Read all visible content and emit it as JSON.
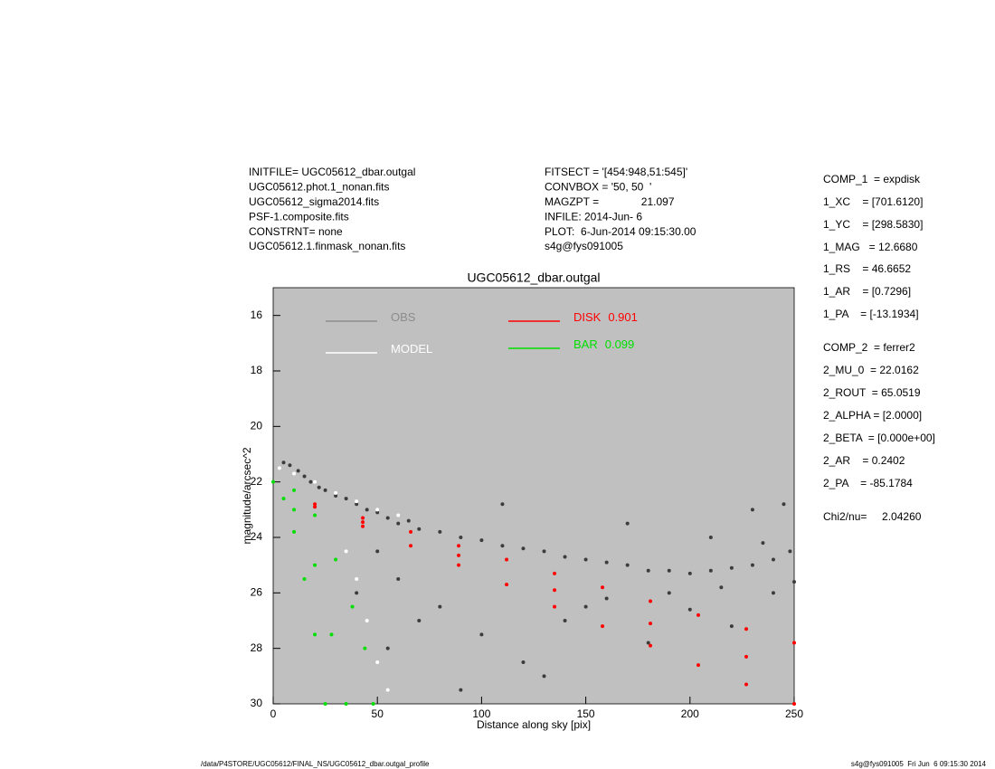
{
  "header": {
    "left": [
      "INITFILE= UGC05612_dbar.outgal",
      "UGC05612.phot.1_nonan.fits",
      "UGC05612_sigma2014.fits",
      "PSF-1.composite.fits",
      "CONSTRNT= none",
      "UGC05612.1.finmask_nonan.fits"
    ],
    "middle": [
      "FITSECT = '[454:948,51:545]'",
      "CONVBOX = '50, 50  '",
      "MAGZPT =              21.097",
      "INFILE: 2014-Jun- 6",
      "PLOT:  6-Jun-2014 09:15:30.00",
      "s4g@fys091005"
    ],
    "right": [
      "COMP_1  = expdisk",
      "1_XC    = [701.6120]",
      "1_YC    = [298.5830]",
      "1_MAG   = 12.6680",
      "1_RS    = 46.6652",
      "1_AR    = [0.7296]",
      "1_PA    = [-13.1934]",
      "COMP_2  = ferrer2",
      "2_MU_0  = 22.0162",
      "2_ROUT  = 65.0519",
      "2_ALPHA = [2.0000]",
      "2_BETA  = [0.000e+00]",
      "2_AR    = 0.2402",
      "2_PA    = -85.1784",
      "Chi2/nu=     2.04260"
    ]
  },
  "chart_data": {
    "type": "scatter",
    "title": "UGC05612_dbar.outgal",
    "x_label": "Distance along sky [pix]",
    "y_label": "magnitude/arcsec^2",
    "xlim": [
      0,
      250
    ],
    "ylim": [
      30,
      15
    ],
    "xticks": [
      0,
      50,
      100,
      150,
      200,
      250
    ],
    "yticks": [
      16,
      18,
      20,
      22,
      24,
      26,
      28,
      30
    ],
    "background": "#c0c0c0",
    "series": [
      {
        "name": "OBS",
        "color": "#3c3c3c",
        "legend_color": "#8c8c8c",
        "x": [
          5,
          8,
          12,
          15,
          18,
          22,
          25,
          30,
          35,
          40,
          45,
          50,
          55,
          60,
          65,
          70,
          80,
          90,
          100,
          110,
          120,
          130,
          140,
          150,
          160,
          170,
          180,
          190,
          200,
          210,
          220,
          230,
          240,
          248,
          60,
          80,
          100,
          120,
          140,
          160,
          180,
          200,
          220,
          240,
          90,
          130,
          70,
          110,
          170,
          230,
          245,
          210,
          190,
          150,
          50,
          40,
          55,
          250,
          235,
          215
        ],
        "values": [
          21.3,
          21.4,
          21.6,
          21.8,
          22.0,
          22.2,
          22.3,
          22.5,
          22.6,
          22.8,
          23.0,
          23.1,
          23.3,
          23.5,
          23.4,
          23.7,
          23.8,
          24.0,
          24.1,
          24.3,
          24.4,
          24.5,
          24.7,
          24.8,
          24.9,
          25.0,
          25.2,
          25.2,
          25.3,
          25.2,
          25.1,
          25.0,
          24.8,
          24.5,
          25.5,
          26.5,
          27.5,
          28.5,
          27.0,
          26.2,
          27.8,
          26.6,
          27.2,
          26.0,
          29.5,
          29.0,
          27.0,
          22.8,
          23.5,
          23.0,
          22.8,
          24.0,
          26.0,
          26.5,
          24.5,
          26.0,
          28.0,
          25.6,
          24.2,
          25.8
        ]
      },
      {
        "name": "MODEL",
        "color": "#ffffff",
        "x": [
          3,
          10,
          20,
          30,
          40,
          50,
          60,
          35,
          40,
          45,
          50,
          55
        ],
        "values": [
          21.5,
          21.7,
          22.0,
          22.4,
          22.7,
          23.0,
          23.2,
          24.5,
          25.5,
          27.0,
          28.5,
          29.5
        ]
      },
      {
        "name": "BAR",
        "color": "#00e000",
        "fraction": 0.099,
        "x": [
          0,
          10,
          20,
          30,
          38,
          44,
          48,
          5,
          10,
          15,
          20,
          25,
          10,
          20,
          28,
          35
        ],
        "values": [
          22.0,
          22.3,
          23.2,
          24.8,
          26.5,
          28.0,
          30.0,
          22.6,
          23.8,
          25.5,
          27.5,
          30.0,
          23.0,
          25.0,
          27.5,
          30.0
        ]
      },
      {
        "name": "DISK",
        "color": "#ff0000",
        "fraction": 0.901,
        "x": [
          20,
          43,
          66,
          89,
          112,
          135,
          158,
          181,
          204,
          227,
          250,
          20,
          43,
          66,
          89,
          112,
          135,
          158,
          181,
          204,
          227,
          250,
          43,
          89,
          135,
          181,
          227
        ],
        "values": [
          22.8,
          23.3,
          23.8,
          24.3,
          24.8,
          25.3,
          25.8,
          26.3,
          26.8,
          27.3,
          27.8,
          22.9,
          23.6,
          24.3,
          25.0,
          25.7,
          26.5,
          27.2,
          27.9,
          28.6,
          29.3,
          30.0,
          23.45,
          24.65,
          25.9,
          27.1,
          28.3
        ]
      }
    ]
  },
  "footer": {
    "left": "/data/P4STORE/UGC05612/FINAL_NS/UGC05612_dbar.outgal_profile",
    "right": "s4g@fys091005  Fri Jun  6 09:15:30 2014"
  }
}
